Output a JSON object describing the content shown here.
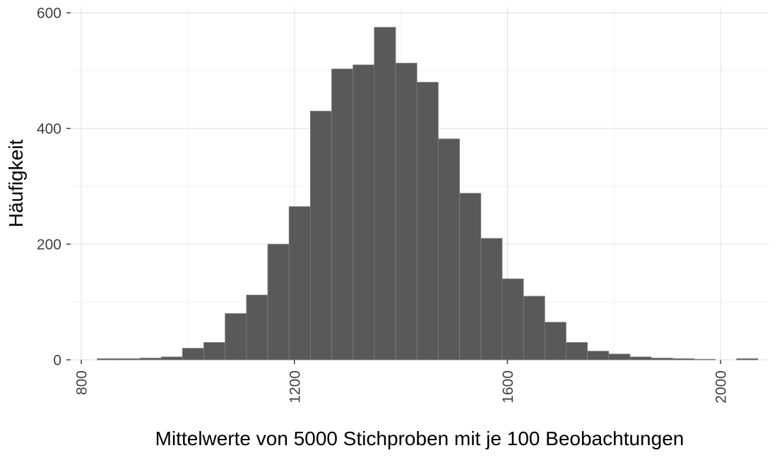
{
  "chart_data": {
    "type": "bar",
    "subtype": "histogram",
    "title": "",
    "xlabel": "Mittelwerte von 5000 Stichproben mit je 100 Beobachtungen",
    "ylabel": "Häufigkeit",
    "bin_start": 830,
    "bin_width": 40,
    "counts": [
      2,
      2,
      3,
      5,
      20,
      30,
      80,
      112,
      200,
      265,
      430,
      503,
      510,
      575,
      513,
      480,
      382,
      288,
      210,
      140,
      110,
      65,
      30,
      15,
      10,
      5,
      3,
      2,
      1,
      0,
      2
    ],
    "x_ticks": [
      "800",
      "1200",
      "1600",
      "2000"
    ],
    "x_tick_values": [
      800,
      1200,
      1600,
      2000
    ],
    "x_minor_tick_values": [
      1000,
      1400,
      1800
    ],
    "y_ticks": [
      "0",
      "200",
      "400",
      "600"
    ],
    "y_tick_values": [
      0,
      200,
      400,
      600
    ],
    "y_minor_tick_values": [
      100,
      300,
      500
    ],
    "xlim": [
      780,
      2090
    ],
    "ylim": [
      0,
      610
    ],
    "grid": true,
    "legend": "none",
    "x_tick_rotation": -90,
    "colors": {
      "bar_fill": "#595959",
      "bar_border": "#7d7d7d",
      "grid_major": "#e3e3e3",
      "grid_minor": "#f1f1f1",
      "axis_text": "#404040",
      "axis_title": "#000000",
      "tick_mark": "#333333",
      "background": "#ffffff"
    }
  }
}
